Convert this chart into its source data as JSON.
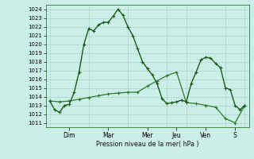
{
  "background_color": "#cceee8",
  "grid_color": "#aad4cc",
  "line1_color": "#1a5c1a",
  "line2_color": "#2d7a2d",
  "xlabel": "Pression niveau de la mer( hPa )",
  "ylim": [
    1010.5,
    1024.5
  ],
  "yticks": [
    1011,
    1012,
    1013,
    1014,
    1015,
    1016,
    1017,
    1018,
    1019,
    1020,
    1021,
    1022,
    1023,
    1024
  ],
  "x_day_labels": [
    "Dim",
    "Mar",
    "Mer",
    "Jeu",
    "Ven",
    "S"
  ],
  "x_day_positions": [
    24,
    72,
    120,
    156,
    192,
    228
  ],
  "x_vlines": [
    0,
    48,
    96,
    144,
    168,
    216,
    240
  ],
  "line1_x": [
    0,
    6,
    12,
    18,
    24,
    30,
    36,
    42,
    48,
    54,
    60,
    66,
    72,
    78,
    84,
    90,
    96,
    102,
    108,
    114,
    120,
    126,
    132,
    138,
    144,
    150,
    156,
    162,
    168,
    174,
    180,
    186,
    192,
    198,
    204,
    210,
    216,
    222,
    228,
    234,
    240
  ],
  "line1_y": [
    1013.5,
    1012.5,
    1012.2,
    1013.0,
    1013.1,
    1014.5,
    1016.8,
    1020.0,
    1021.8,
    1021.5,
    1022.2,
    1022.5,
    1022.5,
    1023.2,
    1024.0,
    1023.3,
    1022.0,
    1021.0,
    1019.5,
    1018.0,
    1017.2,
    1016.5,
    1015.5,
    1013.8,
    1013.2,
    1013.3,
    1013.4,
    1013.6,
    1013.4,
    1015.5,
    1016.8,
    1018.2,
    1018.5,
    1018.4,
    1017.8,
    1017.3,
    1015.0,
    1014.8,
    1013.0,
    1012.5,
    1013.0
  ],
  "line2_x": [
    0,
    12,
    24,
    36,
    48,
    60,
    72,
    84,
    96,
    108,
    120,
    132,
    144,
    156,
    168,
    180,
    192,
    204,
    216,
    228,
    240
  ],
  "line2_y": [
    1013.5,
    1013.4,
    1013.5,
    1013.7,
    1013.9,
    1014.1,
    1014.3,
    1014.4,
    1014.5,
    1014.5,
    1015.2,
    1015.8,
    1016.4,
    1016.8,
    1013.3,
    1013.2,
    1013.0,
    1012.8,
    1011.5,
    1011.0,
    1013.0
  ],
  "xlim": [
    -5,
    245
  ]
}
